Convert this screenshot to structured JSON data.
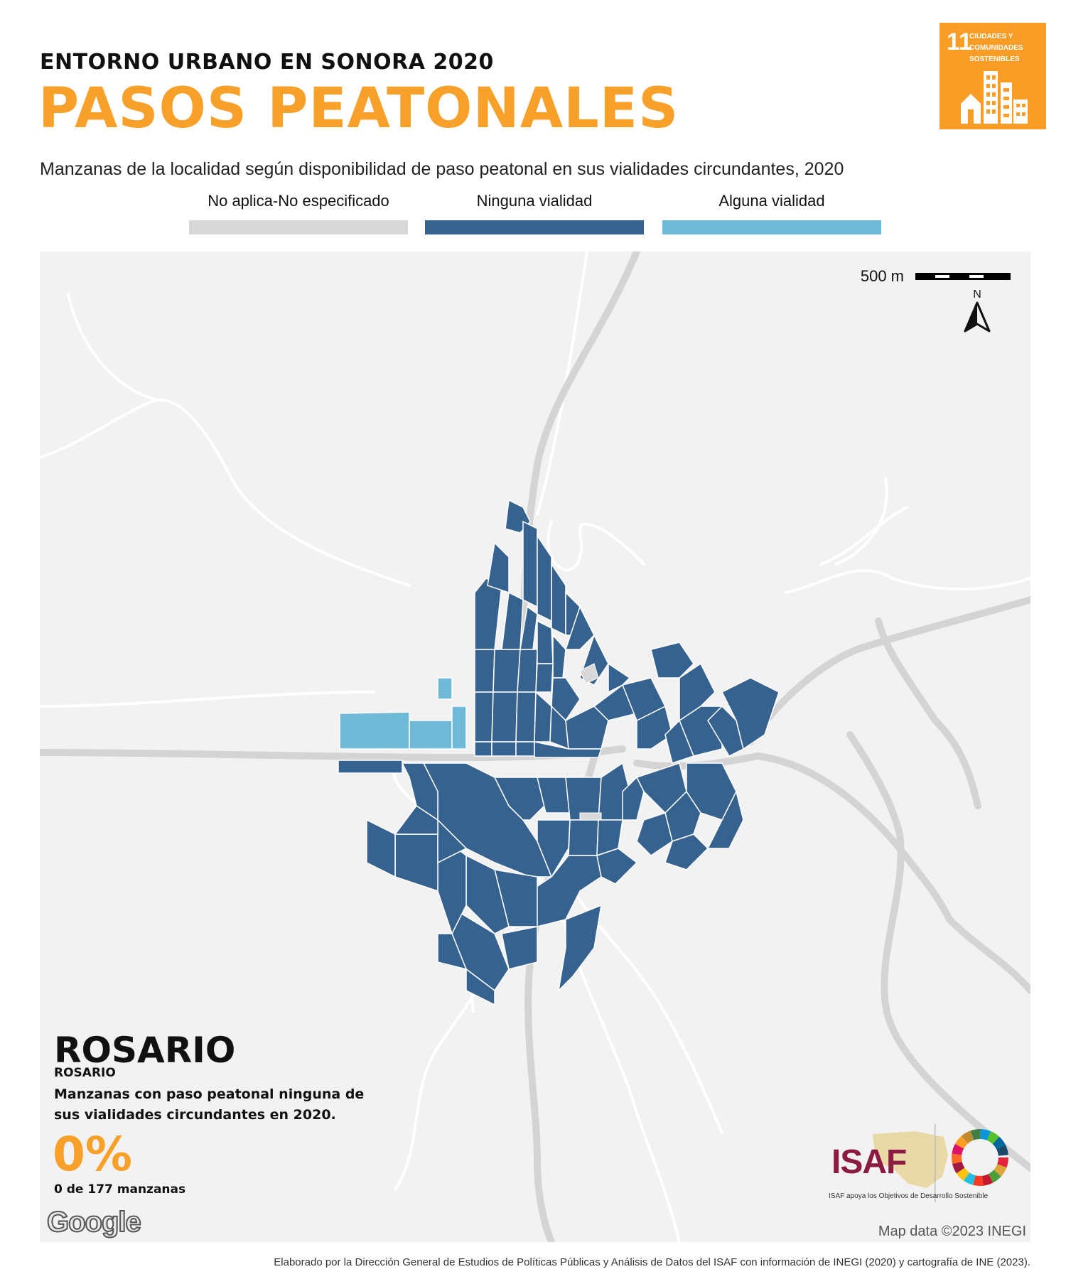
{
  "header": {
    "kicker": "ENTORNO URBANO EN SONORA 2020",
    "title": "PASOS PEATONALES",
    "subtitle": "Manzanas de la localidad según disponibilidad de paso peatonal en sus vialidades circundantes, 2020"
  },
  "sdg_badge": {
    "number": "11",
    "text": "CIUDADES Y COMUNIDADES SOSTENIBLES",
    "color": "#f99d26"
  },
  "legend": [
    {
      "label": "No aplica-No especificado",
      "color": "#d8d8d8"
    },
    {
      "label": "Ninguna vialidad",
      "color": "#35628f"
    },
    {
      "label": "Alguna vialidad",
      "color": "#6fbad6"
    }
  ],
  "map": {
    "scale_label": "500 m",
    "north_label": "N",
    "attribution": "Map data ©2023 INEGI",
    "google_logo": "Google",
    "background_color": "#f2f2f2",
    "road_color": "#d4d4d4"
  },
  "locality": {
    "name": "ROSARIO",
    "municipality": "ROSARIO",
    "description": "Manzanas con paso peatonal ninguna de sus vialidades circundantes en 2020.",
    "percent": "0%",
    "count_text": "0 de 177 manzanas"
  },
  "logos": {
    "isaf": "ISAF",
    "isaf_caption": "ISAF apoya los Objetivos de Desarrollo Sostenible"
  },
  "footer": "Elaborado por la Dirección General de Estudios de Políticas Públicas y Análisis de Datos del ISAF con información de INEGI (2020) y cartografía de INE (2023)."
}
